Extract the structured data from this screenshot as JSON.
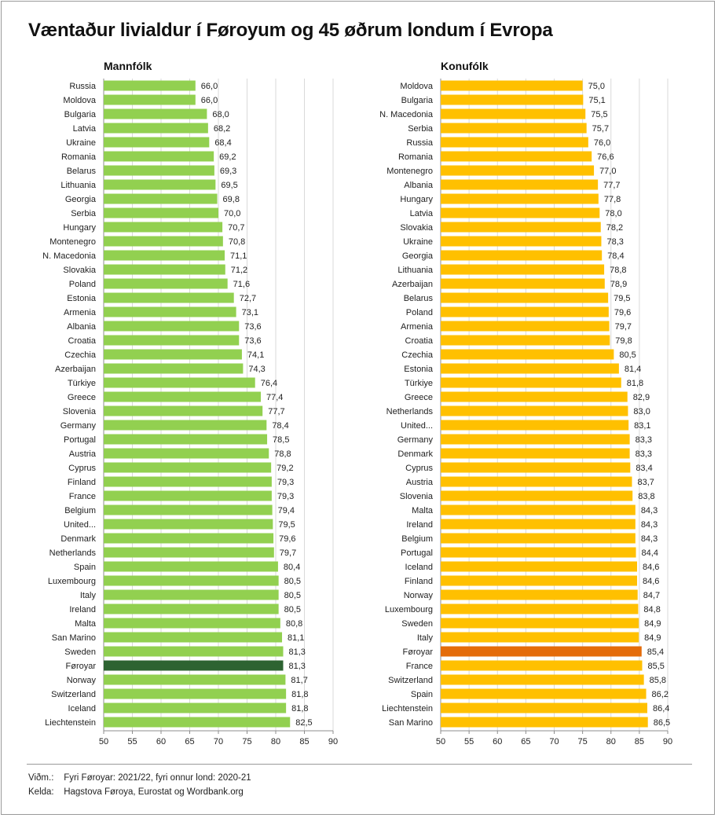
{
  "title": "Væntaður livialdur í Føroyum og 45 øðrum londum í Evropa",
  "notes": {
    "note_label": "Viðm.:",
    "note_text": "Fyri Føroyar: 2021/22, fyri onnur lond: 2020-21",
    "source_label": "Kelda:",
    "source_text": "Hagstova Føroya, Eurostat og Wordbank.org"
  },
  "colors": {
    "men_bar": "#92d050",
    "men_highlight": "#2d6331",
    "women_bar": "#ffc000",
    "women_highlight": "#e46c0a"
  },
  "chart_data": [
    {
      "type": "bar",
      "orientation": "horizontal",
      "title": "Mannfólk",
      "highlight": "Føroyar",
      "xlim": [
        50,
        90
      ],
      "xticks": [
        50,
        55,
        60,
        65,
        70,
        75,
        80,
        85,
        90
      ],
      "categories": [
        "Russia",
        "Moldova",
        "Bulgaria",
        "Latvia",
        "Ukraine",
        "Romania",
        "Belarus",
        "Lithuania",
        "Georgia",
        "Serbia",
        "Hungary",
        "Montenegro",
        "N. Macedonia",
        "Slovakia",
        "Poland",
        "Estonia",
        "Armenia",
        "Albania",
        "Croatia",
        "Czechia",
        "Azerbaijan",
        "Türkiye",
        "Greece",
        "Slovenia",
        "Germany",
        "Portugal",
        "Austria",
        "Cyprus",
        "Finland",
        "France",
        "Belgium",
        "United...",
        "Denmark",
        "Netherlands",
        "Spain",
        "Luxembourg",
        "Italy",
        "Ireland",
        "Malta",
        "San Marino",
        "Sweden",
        "Føroyar",
        "Norway",
        "Switzerland",
        "Iceland",
        "Liechtenstein"
      ],
      "values": [
        66.0,
        66.0,
        68.0,
        68.2,
        68.4,
        69.2,
        69.3,
        69.5,
        69.8,
        70.0,
        70.7,
        70.8,
        71.1,
        71.2,
        71.6,
        72.7,
        73.1,
        73.6,
        73.6,
        74.1,
        74.3,
        76.4,
        77.4,
        77.7,
        78.4,
        78.5,
        78.8,
        79.2,
        79.3,
        79.3,
        79.4,
        79.5,
        79.6,
        79.7,
        80.4,
        80.5,
        80.5,
        80.5,
        80.8,
        81.1,
        81.3,
        81.3,
        81.7,
        81.8,
        81.8,
        82.5
      ],
      "labels": [
        "66,0",
        "66,0",
        "68,0",
        "68,2",
        "68,4",
        "69,2",
        "69,3",
        "69,5",
        "69,8",
        "70,0",
        "70,7",
        "70,8",
        "71,1",
        "71,2",
        "71,6",
        "72,7",
        "73,1",
        "73,6",
        "73,6",
        "74,1",
        "74,3",
        "76,4",
        "77,4",
        "77,7",
        "78,4",
        "78,5",
        "78,8",
        "79,2",
        "79,3",
        "79,3",
        "79,4",
        "79,5",
        "79,6",
        "79,7",
        "80,4",
        "80,5",
        "80,5",
        "80,5",
        "80,8",
        "81,1",
        "81,3",
        "81,3",
        "81,7",
        "81,8",
        "81,8",
        "82,5"
      ]
    },
    {
      "type": "bar",
      "orientation": "horizontal",
      "title": "Konufólk",
      "highlight": "Føroyar",
      "xlim": [
        50,
        90
      ],
      "xticks": [
        50,
        55,
        60,
        65,
        70,
        75,
        80,
        85,
        90
      ],
      "categories": [
        "Moldova",
        "Bulgaria",
        "N. Macedonia",
        "Serbia",
        "Russia",
        "Romania",
        "Montenegro",
        "Albania",
        "Hungary",
        "Latvia",
        "Slovakia",
        "Ukraine",
        "Georgia",
        "Lithuania",
        "Azerbaijan",
        "Belarus",
        "Poland",
        "Armenia",
        "Croatia",
        "Czechia",
        "Estonia",
        "Türkiye",
        "Greece",
        "Netherlands",
        "United...",
        "Germany",
        "Denmark",
        "Cyprus",
        "Austria",
        "Slovenia",
        "Malta",
        "Ireland",
        "Belgium",
        "Portugal",
        "Iceland",
        "Finland",
        "Norway",
        "Luxembourg",
        "Sweden",
        "Italy",
        "Føroyar",
        "France",
        "Switzerland",
        "Spain",
        "Liechtenstein",
        "San Marino"
      ],
      "values": [
        75.0,
        75.1,
        75.5,
        75.7,
        76.0,
        76.6,
        77.0,
        77.7,
        77.8,
        78.0,
        78.2,
        78.3,
        78.4,
        78.8,
        78.9,
        79.5,
        79.6,
        79.7,
        79.8,
        80.5,
        81.4,
        81.8,
        82.9,
        83.0,
        83.1,
        83.3,
        83.3,
        83.4,
        83.7,
        83.8,
        84.3,
        84.3,
        84.3,
        84.4,
        84.6,
        84.6,
        84.7,
        84.8,
        84.9,
        84.9,
        85.4,
        85.5,
        85.8,
        86.2,
        86.4,
        86.5
      ],
      "labels": [
        "75,0",
        "75,1",
        "75,5",
        "75,7",
        "76,0",
        "76,6",
        "77,0",
        "77,7",
        "77,8",
        "78,0",
        "78,2",
        "78,3",
        "78,4",
        "78,8",
        "78,9",
        "79,5",
        "79,6",
        "79,7",
        "79,8",
        "80,5",
        "81,4",
        "81,8",
        "82,9",
        "83,0",
        "83,1",
        "83,3",
        "83,3",
        "83,4",
        "83,7",
        "83,8",
        "84,3",
        "84,3",
        "84,3",
        "84,4",
        "84,6",
        "84,6",
        "84,7",
        "84,8",
        "84,9",
        "84,9",
        "85,4",
        "85,5",
        "85,8",
        "86,2",
        "86,4",
        "86,5"
      ]
    }
  ]
}
